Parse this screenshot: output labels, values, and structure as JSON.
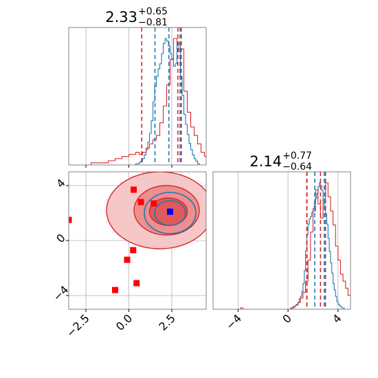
{
  "colors": {
    "blue": "#1f77b4",
    "red": "#d62728",
    "grid": "#b0b0b0",
    "axis": "#808080",
    "marker_red": "#ff0000",
    "marker_blue": "#0000ff"
  },
  "chart_data": [
    {
      "panel": "top-left-1d-histogram",
      "type": "histogram",
      "title": {
        "value": "2.33",
        "plus": "+0.65",
        "minus": "−0.81"
      },
      "xlim": [
        -3.5,
        4.5
      ],
      "grid": true,
      "series": [
        {
          "color": "blue",
          "bin_start": 0.3,
          "bin_width": 0.1,
          "counts": [
            0,
            1,
            1,
            2,
            3,
            5,
            8,
            12,
            18,
            25,
            35,
            50,
            62,
            70,
            76,
            80,
            88,
            96,
            100,
            98,
            94,
            88,
            84,
            78,
            80,
            96,
            90,
            70,
            55,
            40,
            32,
            24,
            17,
            12,
            8,
            5,
            3,
            1
          ]
        },
        {
          "color": "red",
          "bin_start": -2.2,
          "bin_width": 0.2,
          "counts": [
            1,
            1,
            1,
            1,
            1,
            2,
            2,
            3,
            3,
            4,
            4,
            5,
            5,
            6,
            5,
            6,
            8,
            10,
            12,
            14,
            20,
            28,
            38,
            50,
            60,
            58,
            55,
            35,
            25,
            18,
            14,
            10,
            6,
            4,
            2
          ]
        }
      ],
      "quantile_lines": {
        "blue": [
          1.52,
          2.33,
          2.98
        ],
        "red": [
          0.75,
          2.85,
          3.05
        ]
      }
    },
    {
      "panel": "bottom-left-2d-density",
      "type": "scatter",
      "xlim": [
        -3.5,
        4.5
      ],
      "ylim": [
        -5.0,
        5.0
      ],
      "xticks": [
        -2.5,
        0.0,
        2.5
      ],
      "yticks": [
        4,
        0,
        -4
      ],
      "xtick_labels": [
        "−2.5",
        "0.0",
        "2.5"
      ],
      "ytick_labels": [
        "4",
        "0",
        "−4"
      ],
      "grid": true,
      "red_markers": [
        [
          0.28,
          3.7
        ],
        [
          0.7,
          2.8
        ],
        [
          1.45,
          2.7
        ],
        [
          -3.5,
          1.5
        ],
        [
          0.25,
          -0.7
        ],
        [
          -0.1,
          -1.4
        ],
        [
          0.45,
          -3.1
        ],
        [
          -0.8,
          -3.6
        ]
      ],
      "blue_marker": [
        2.4,
        2.1
      ],
      "contours_red": [
        {
          "cx": 1.8,
          "cy": 2.2,
          "rx": 3.1,
          "ry": 2.8,
          "level": "outer"
        },
        {
          "cx": 2.2,
          "cy": 2.2,
          "rx": 1.9,
          "ry": 1.8,
          "level": "mid"
        },
        {
          "cx": 2.3,
          "cy": 2.1,
          "rx": 1.1,
          "ry": 1.0,
          "level": "inner"
        }
      ],
      "contours_blue": [
        {
          "cx": 2.4,
          "cy": 2.0,
          "rx": 1.5,
          "ry": 1.5
        },
        {
          "cx": 2.4,
          "cy": 2.0,
          "rx": 0.9,
          "ry": 0.9
        }
      ]
    },
    {
      "panel": "bottom-right-1d-histogram",
      "type": "histogram",
      "title": {
        "value": "2.14",
        "plus": "+0.77",
        "minus": "−0.64"
      },
      "xlim": [
        -6.0,
        5.0
      ],
      "xticks": [
        -4,
        0,
        4
      ],
      "xtick_labels": [
        "−4",
        "0",
        "4"
      ],
      "grid": true,
      "series": [
        {
          "color": "blue",
          "bin_start": 0.2,
          "bin_width": 0.1,
          "counts": [
            0,
            1,
            1,
            2,
            3,
            4,
            5,
            8,
            10,
            14,
            20,
            30,
            45,
            58,
            66,
            70,
            72,
            75,
            78,
            82,
            86,
            90,
            95,
            98,
            96,
            92,
            86,
            80,
            74,
            66,
            55,
            45,
            36,
            28,
            20,
            15,
            10,
            6,
            4,
            3,
            2,
            1,
            1
          ]
        },
        {
          "color": "red",
          "bin_start": -4.0,
          "bin_width": 0.2,
          "counts": [
            0,
            1,
            0,
            0,
            0,
            0,
            0,
            0,
            0,
            0,
            0,
            0,
            0,
            0,
            0,
            0,
            0,
            0,
            0,
            0,
            0,
            1,
            2,
            3,
            5,
            8,
            12,
            20,
            35,
            55,
            70,
            85,
            75,
            65,
            78,
            90,
            80,
            70,
            60,
            45,
            35,
            25,
            20,
            15,
            10,
            8,
            6
          ]
        }
      ],
      "quantile_lines": {
        "blue": [
          1.52,
          2.14,
          2.9
        ],
        "red": [
          1.5,
          2.6,
          3.0
        ]
      }
    }
  ]
}
